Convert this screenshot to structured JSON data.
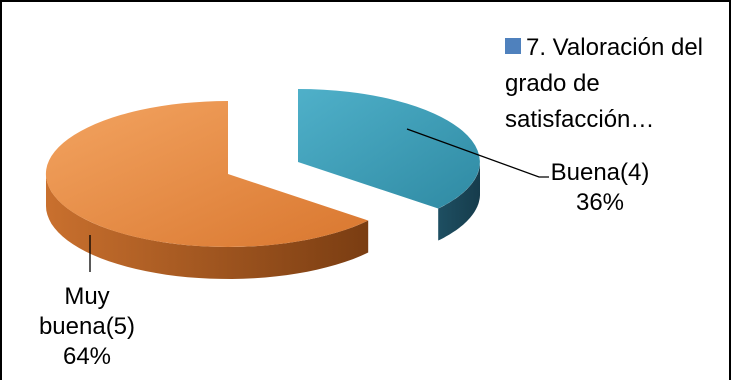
{
  "chart_data": {
    "type": "pie",
    "title": "",
    "legend": {
      "position": "top-right",
      "entries": [
        "7. Valoración del grado de satisfacción…"
      ]
    },
    "slices": [
      {
        "label": "Buena(4)",
        "value": 36,
        "percent_label": "36%",
        "color": "#4bacc6"
      },
      {
        "label": "Muy buena(5)",
        "value": 64,
        "percent_label": "64%",
        "color": "#f79646"
      }
    ]
  },
  "labels": {
    "buena": "Buena(4)\n36%",
    "muy_buena": "Muy\nbuena(5)\n64%",
    "legend_text": "7. Valoración del grado de satisfacción…"
  }
}
